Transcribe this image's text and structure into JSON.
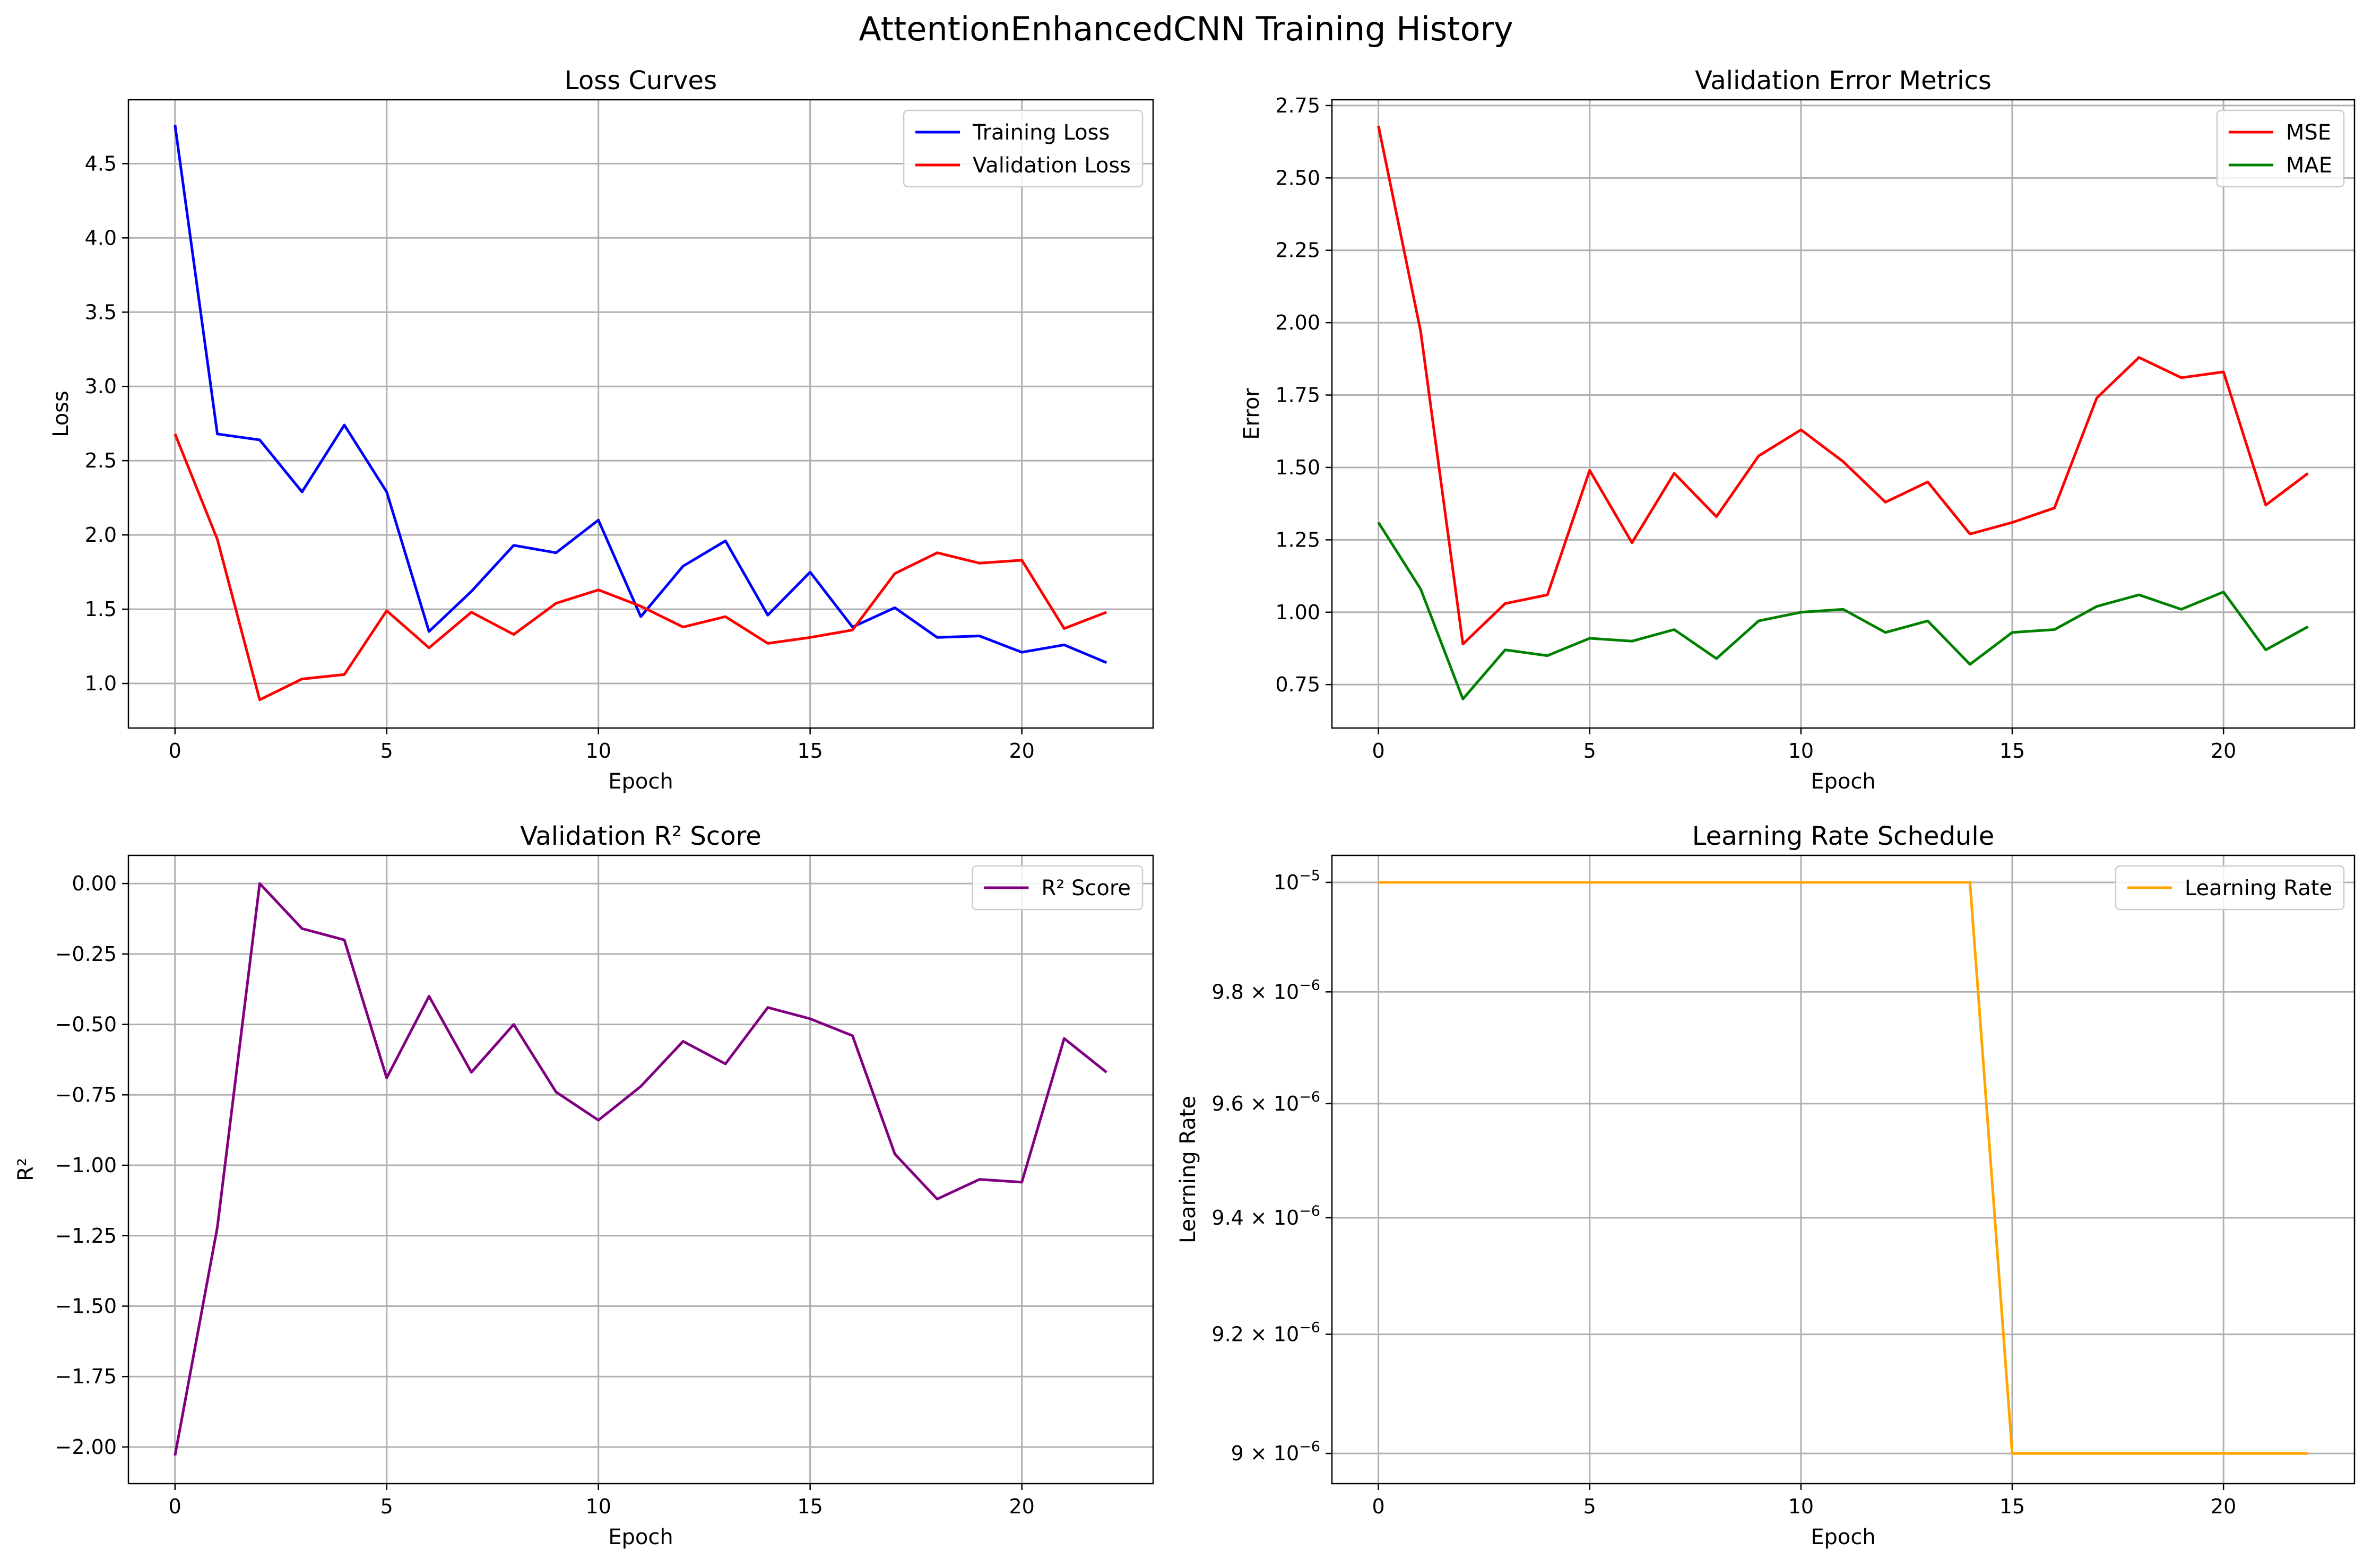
{
  "figure": {
    "title": "AttentionEnhancedCNN Training History"
  },
  "chart_data": [
    {
      "type": "line",
      "title": "Loss Curves",
      "xlabel": "Epoch",
      "ylabel": "Loss",
      "xlim": [
        -1.1,
        23.1
      ],
      "ylim": [
        0.7,
        4.93
      ],
      "xticks": [
        0,
        5,
        10,
        15,
        20
      ],
      "xtick_labels": [
        "0",
        "5",
        "10",
        "15",
        "20"
      ],
      "yticks": [
        1.0,
        1.5,
        2.0,
        2.5,
        3.0,
        3.5,
        4.0,
        4.5
      ],
      "ytick_labels": [
        "1.0",
        "1.5",
        "2.0",
        "2.5",
        "3.0",
        "3.5",
        "4.0",
        "4.5"
      ],
      "grid": true,
      "legend": "top-right",
      "x": [
        0,
        1,
        2,
        3,
        4,
        5,
        6,
        7,
        8,
        9,
        10,
        11,
        12,
        13,
        14,
        15,
        16,
        17,
        18,
        19,
        20,
        21,
        22
      ],
      "series": [
        {
          "name": "Training Loss",
          "color": "#0000ff",
          "values": [
            4.76,
            2.68,
            2.64,
            2.29,
            2.74,
            2.29,
            1.35,
            1.62,
            1.93,
            1.88,
            2.1,
            1.45,
            1.79,
            1.96,
            1.46,
            1.75,
            1.38,
            1.51,
            1.31,
            1.32,
            1.21,
            1.26,
            1.14
          ]
        },
        {
          "name": "Validation Loss",
          "color": "#ff0000",
          "values": [
            2.68,
            1.97,
            0.89,
            1.03,
            1.06,
            1.49,
            1.24,
            1.48,
            1.33,
            1.54,
            1.63,
            1.52,
            1.38,
            1.45,
            1.27,
            1.31,
            1.36,
            1.74,
            1.88,
            1.81,
            1.83,
            1.37,
            1.48
          ]
        }
      ]
    },
    {
      "type": "line",
      "title": "Validation Error Metrics",
      "xlabel": "Epoch",
      "ylabel": "Error",
      "xlim": [
        -1.1,
        23.1
      ],
      "ylim": [
        0.6,
        2.77
      ],
      "xticks": [
        0,
        5,
        10,
        15,
        20
      ],
      "xtick_labels": [
        "0",
        "5",
        "10",
        "15",
        "20"
      ],
      "yticks": [
        0.75,
        1.0,
        1.25,
        1.5,
        1.75,
        2.0,
        2.25,
        2.5,
        2.75
      ],
      "ytick_labels": [
        "0.75",
        "1.00",
        "1.25",
        "1.50",
        "1.75",
        "2.00",
        "2.25",
        "2.50",
        "2.75"
      ],
      "grid": true,
      "legend": "top-right",
      "x": [
        0,
        1,
        2,
        3,
        4,
        5,
        6,
        7,
        8,
        9,
        10,
        11,
        12,
        13,
        14,
        15,
        16,
        17,
        18,
        19,
        20,
        21,
        22
      ],
      "series": [
        {
          "name": "MSE",
          "color": "#ff0000",
          "values": [
            2.68,
            1.97,
            0.89,
            1.03,
            1.06,
            1.49,
            1.24,
            1.48,
            1.33,
            1.54,
            1.63,
            1.52,
            1.38,
            1.45,
            1.27,
            1.31,
            1.36,
            1.74,
            1.88,
            1.81,
            1.83,
            1.37,
            1.48
          ]
        },
        {
          "name": "MAE",
          "color": "#008000",
          "values": [
            1.31,
            1.08,
            0.7,
            0.87,
            0.85,
            0.91,
            0.9,
            0.94,
            0.84,
            0.97,
            1.0,
            1.01,
            0.93,
            0.97,
            0.82,
            0.93,
            0.94,
            1.02,
            1.06,
            1.01,
            1.07,
            0.87,
            0.95
          ]
        }
      ]
    },
    {
      "type": "line",
      "title": "Validation R² Score",
      "xlabel": "Epoch",
      "ylabel": "R²",
      "xlim": [
        -1.1,
        23.1
      ],
      "ylim": [
        -2.13,
        0.1
      ],
      "xticks": [
        0,
        5,
        10,
        15,
        20
      ],
      "xtick_labels": [
        "0",
        "5",
        "10",
        "15",
        "20"
      ],
      "yticks": [
        -2.0,
        -1.75,
        -1.5,
        -1.25,
        -1.0,
        -0.75,
        -0.5,
        -0.25,
        0.0
      ],
      "ytick_labels": [
        "−2.00",
        "−1.75",
        "−1.50",
        "−1.25",
        "−1.00",
        "−0.75",
        "−0.50",
        "−0.25",
        "0.00"
      ],
      "grid": true,
      "legend": "top-right",
      "x": [
        0,
        1,
        2,
        3,
        4,
        5,
        6,
        7,
        8,
        9,
        10,
        11,
        12,
        13,
        14,
        15,
        16,
        17,
        18,
        19,
        20,
        21,
        22
      ],
      "series": [
        {
          "name": "R² Score",
          "color": "#800080",
          "values": [
            -2.03,
            -1.22,
            0.0,
            -0.16,
            -0.2,
            -0.69,
            -0.4,
            -0.67,
            -0.5,
            -0.74,
            -0.84,
            -0.72,
            -0.56,
            -0.64,
            -0.44,
            -0.48,
            -0.54,
            -0.96,
            -1.12,
            -1.05,
            -1.06,
            -0.55,
            -0.67
          ]
        }
      ]
    },
    {
      "type": "line",
      "title": "Learning Rate Schedule",
      "xlabel": "Epoch",
      "ylabel": "Learning Rate",
      "yscale": "log",
      "xlim": [
        -1.1,
        23.1
      ],
      "ylim": [
        8.95e-06,
        1.005e-05
      ],
      "xticks": [
        0,
        5,
        10,
        15,
        20
      ],
      "xtick_labels": [
        "0",
        "5",
        "10",
        "15",
        "20"
      ],
      "yticks": [
        9e-06,
        9.2e-06,
        9.4e-06,
        9.6e-06,
        9.8e-06,
        1e-05
      ],
      "ytick_labels": [
        {
          "mant": "9 × 10",
          "exp": "−6"
        },
        {
          "mant": "9.2 × 10",
          "exp": "−6"
        },
        {
          "mant": "9.4 × 10",
          "exp": "−6"
        },
        {
          "mant": "9.6 × 10",
          "exp": "−6"
        },
        {
          "mant": "9.8 × 10",
          "exp": "−6"
        },
        {
          "mant": "10",
          "exp": "−5"
        }
      ],
      "grid": true,
      "legend": "top-right",
      "x": [
        0,
        1,
        2,
        3,
        4,
        5,
        6,
        7,
        8,
        9,
        10,
        11,
        12,
        13,
        14,
        15,
        16,
        17,
        18,
        19,
        20,
        21,
        22
      ],
      "series": [
        {
          "name": "Learning Rate",
          "color": "#ffa500",
          "values": [
            1e-05,
            1e-05,
            1e-05,
            1e-05,
            1e-05,
            1e-05,
            1e-05,
            1e-05,
            1e-05,
            1e-05,
            1e-05,
            1e-05,
            1e-05,
            1e-05,
            1e-05,
            9e-06,
            9e-06,
            9e-06,
            9e-06,
            9e-06,
            9e-06,
            9e-06,
            9e-06
          ]
        }
      ]
    }
  ]
}
